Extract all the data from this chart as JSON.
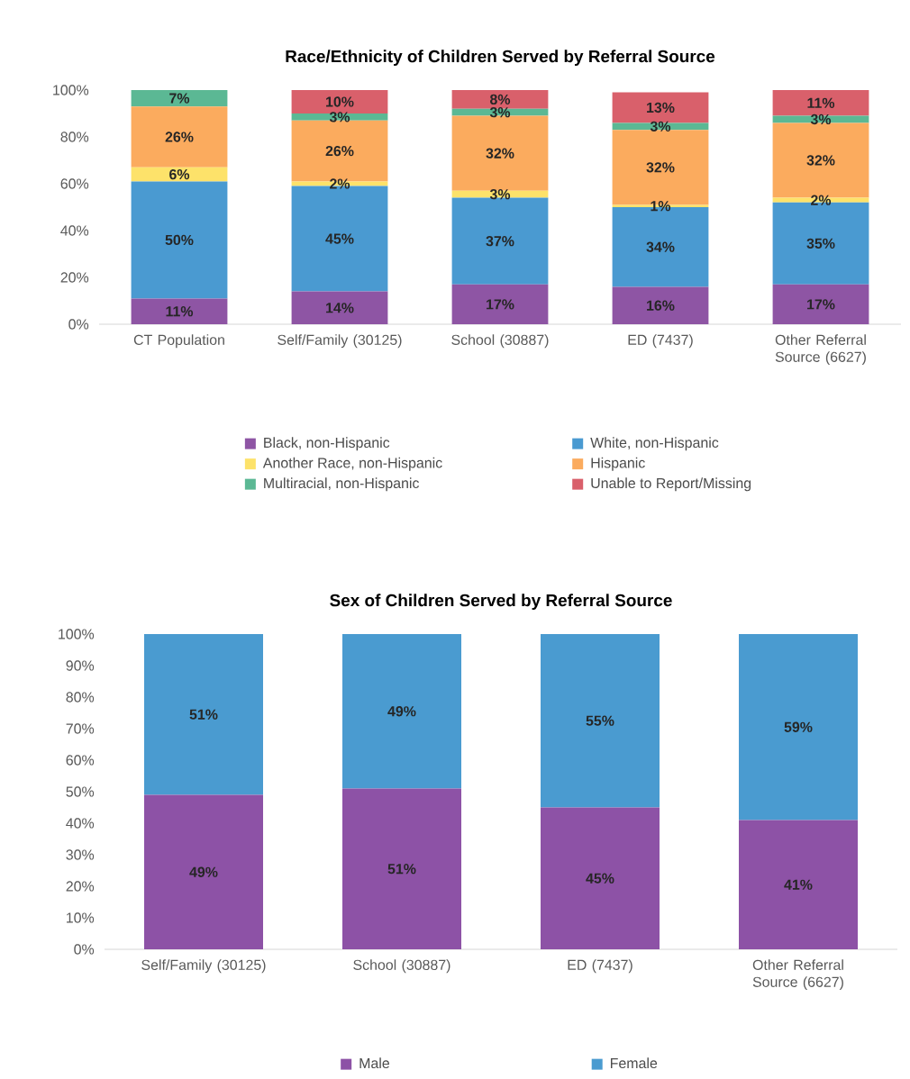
{
  "chart_data": [
    {
      "type": "bar",
      "stacked": true,
      "title": "Race/Ethnicity of Children Served by Referral Source",
      "categories": [
        "CT Population",
        "Self/Family (30125)",
        "School (30887)",
        "ED (7437)",
        "Other Referral Source (6627)"
      ],
      "series": [
        {
          "name": "Black, non-Hispanic",
          "color": "#8e55a4",
          "values": [
            11,
            14,
            17,
            16,
            17
          ],
          "value_labels": [
            "11%",
            "14%",
            "17%",
            "16%",
            "17%"
          ]
        },
        {
          "name": "White, non-Hispanic",
          "color": "#4a9ad1",
          "values": [
            50,
            45,
            37,
            34,
            35
          ],
          "value_labels": [
            "50%",
            "45%",
            "37%",
            "34%",
            "35%"
          ]
        },
        {
          "name": "Another Race, non-Hispanic",
          "color": "#fde26a",
          "values": [
            6,
            2,
            3,
            1,
            2
          ],
          "value_labels": [
            "6%",
            "2%",
            "3%",
            "1%",
            "2%"
          ]
        },
        {
          "name": "Hispanic",
          "color": "#fbab5e",
          "values": [
            26,
            26,
            32,
            32,
            32
          ],
          "value_labels": [
            "26%",
            "26%",
            "32%",
            "32%",
            "32%"
          ]
        },
        {
          "name": "Multiracial, non-Hispanic",
          "color": "#5bb894",
          "values": [
            7,
            3,
            3,
            3,
            3
          ],
          "value_labels": [
            "7%",
            "3%",
            "3%",
            "3%",
            "3%"
          ]
        },
        {
          "name": "Unable to Report/Missing",
          "color": "#d9606b",
          "values": [
            null,
            10,
            8,
            13,
            11
          ],
          "value_labels": [
            null,
            "10%",
            "8%",
            "13%",
            "11%"
          ]
        }
      ],
      "ylim": [
        0,
        100
      ],
      "yticks": [
        {
          "value": 0,
          "label": "0%"
        },
        {
          "value": 20,
          "label": "20%"
        },
        {
          "value": 40,
          "label": "40%"
        },
        {
          "value": 60,
          "label": "60%"
        },
        {
          "value": 80,
          "label": "80%"
        },
        {
          "value": 100,
          "label": "100%"
        }
      ],
      "legend": "bottom"
    },
    {
      "type": "bar",
      "stacked": true,
      "title": "Sex of Children Served by Referral Source",
      "categories": [
        "Self/Family (30125)",
        "School (30887)",
        "ED (7437)",
        "Other Referral Source (6627)"
      ],
      "series": [
        {
          "name": "Male",
          "color": "#8d52a6",
          "values": [
            49,
            51,
            45,
            41
          ],
          "value_labels": [
            "49%",
            "51%",
            "45%",
            "41%"
          ]
        },
        {
          "name": "Female",
          "color": "#4a9bd0",
          "values": [
            51,
            49,
            55,
            59
          ],
          "value_labels": [
            "51%",
            "49%",
            "55%",
            "59%"
          ]
        }
      ],
      "ylim": [
        0,
        100
      ],
      "yticks": [
        {
          "value": 0,
          "label": "0%"
        },
        {
          "value": 10,
          "label": "10%"
        },
        {
          "value": 20,
          "label": "20%"
        },
        {
          "value": 30,
          "label": "30%"
        },
        {
          "value": 40,
          "label": "40%"
        },
        {
          "value": 50,
          "label": "50%"
        },
        {
          "value": 60,
          "label": "60%"
        },
        {
          "value": 70,
          "label": "70%"
        },
        {
          "value": 80,
          "label": "80%"
        },
        {
          "value": 90,
          "label": "90%"
        },
        {
          "value": 100,
          "label": "100%"
        }
      ],
      "legend": "bottom"
    }
  ]
}
